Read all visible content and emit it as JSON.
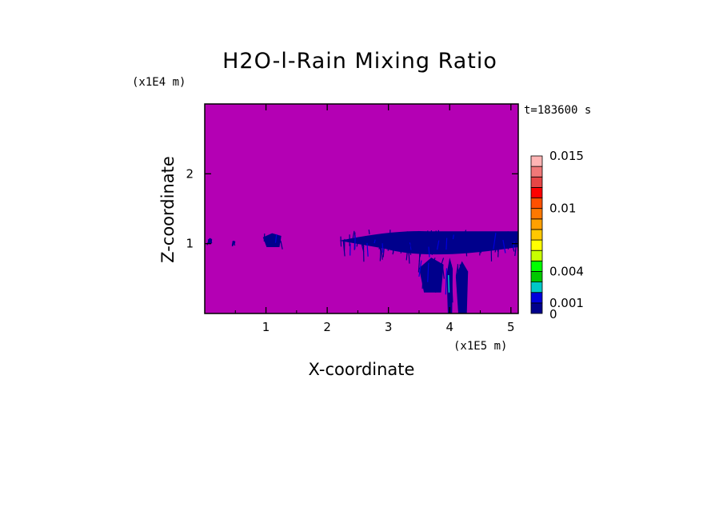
{
  "chart_data": {
    "type": "heatmap",
    "title": "H2O-l-Rain Mixing Ratio",
    "xlabel": "X-coordinate",
    "ylabel": "Z-coordinate",
    "x_scale_label": "(x1E5 m)",
    "y_scale_label": "(x1E4 m)",
    "time_label": "t=183600 s",
    "xlim": [
      0,
      5.12
    ],
    "ylim": [
      0,
      3.0
    ],
    "x_ticks": [
      1,
      2,
      3,
      4,
      5
    ],
    "y_ticks": [
      1,
      2
    ],
    "background_color": "#b400b4",
    "colorbar": {
      "levels": [
        0,
        0.001,
        0.002,
        0.003,
        0.004,
        0.005,
        0.006,
        0.007,
        0.008,
        0.009,
        0.01,
        0.011,
        0.012,
        0.013,
        0.014,
        0.015
      ],
      "colors": [
        "#00008c",
        "#0000dc",
        "#00c8c8",
        "#00c800",
        "#00ff00",
        "#c8ff00",
        "#ffff00",
        "#ffc800",
        "#ffa000",
        "#ff7800",
        "#ff5000",
        "#ff0000",
        "#e64646",
        "#f07878",
        "#ffb4b4"
      ],
      "labels": [
        {
          "value": 0,
          "text": "0"
        },
        {
          "value": 0.001,
          "text": "0.001"
        },
        {
          "value": 0.004,
          "text": "0.004"
        },
        {
          "value": 0.01,
          "text": "0.01"
        },
        {
          "value": 0.015,
          "text": "0.015"
        }
      ]
    },
    "rain_regions": [
      {
        "x0": 0.05,
        "x1": 0.12,
        "z0": 1.0,
        "z1": 1.08
      },
      {
        "x0": 0.45,
        "x1": 0.5,
        "z0": 1.0,
        "z1": 1.04
      },
      {
        "x0": 0.95,
        "x1": 1.25,
        "z0": 0.95,
        "z1": 1.15
      },
      {
        "x0": 2.2,
        "x1": 5.12,
        "z0": 0.75,
        "z1": 1.2
      },
      {
        "x0": 3.5,
        "x1": 3.9,
        "z0": 0.3,
        "z1": 0.8
      },
      {
        "x0": 3.95,
        "x1": 4.05,
        "z0": 0.0,
        "z1": 0.8
      },
      {
        "x0": 4.1,
        "x1": 4.3,
        "z0": 0.0,
        "z1": 0.75
      }
    ]
  }
}
